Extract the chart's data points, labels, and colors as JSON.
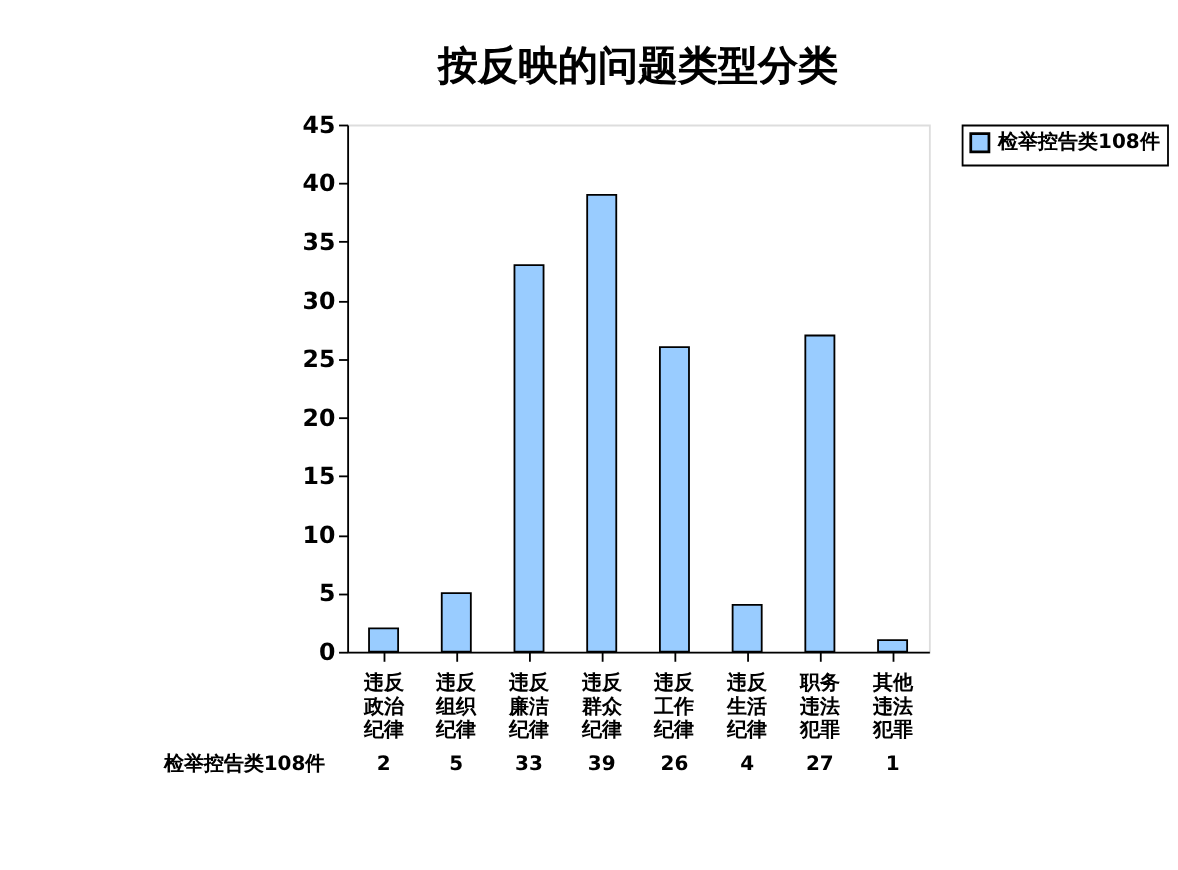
{
  "chart_data": {
    "type": "bar",
    "title": "按反映的问题类型分类",
    "categories": [
      "违反政治纪律",
      "违反组织纪律",
      "违反廉洁纪律",
      "违反群众纪律",
      "违反工作纪律",
      "违反生活纪律",
      "职务违法犯罪",
      "其他违法犯罪"
    ],
    "series": [
      {
        "name": "检举控告类108件",
        "color": "#99ccff",
        "values": [
          2,
          5,
          33,
          39,
          26,
          4,
          27,
          1
        ]
      }
    ],
    "ylim": [
      0,
      45
    ],
    "yticks": [
      0,
      5,
      10,
      15,
      20,
      25,
      30,
      35,
      40,
      45
    ],
    "grid": false,
    "legend": "right",
    "data_labels": true
  }
}
